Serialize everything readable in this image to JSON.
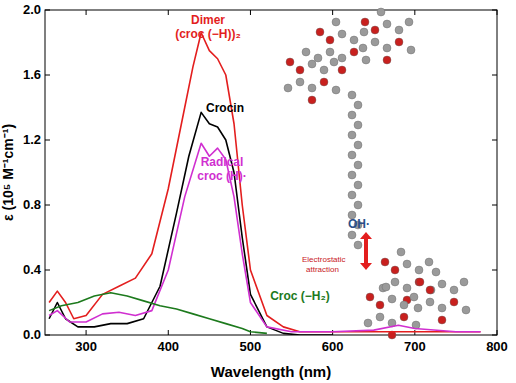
{
  "chart_data": {
    "type": "line",
    "x_label": "Wavelength (nm)",
    "y_label": "ε (10⁵ M⁻¹cm⁻¹)",
    "xlim": [
      250,
      800
    ],
    "xticks": [
      300,
      400,
      500,
      600,
      700,
      800
    ],
    "ylim": [
      0,
      2.0
    ],
    "yticks": [
      {
        "value": 0,
        "label": "0.0"
      },
      {
        "value": 0.4,
        "label": "0.4"
      },
      {
        "value": 0.8,
        "label": "0.8"
      },
      {
        "value": 1.2,
        "label": "1.2"
      },
      {
        "value": 1.6,
        "label": "1.6"
      },
      {
        "value": 2.0,
        "label": "2.0"
      }
    ],
    "grid": false,
    "annotations": [
      "OH·",
      "Electrostatic attraction"
    ],
    "series": [
      {
        "name": "Dimer (croc (−H))₂",
        "color": "#e31e1e",
        "x": [
          255,
          265,
          275,
          285,
          300,
          320,
          340,
          360,
          380,
          400,
          420,
          430,
          440,
          450,
          460,
          470,
          480,
          490,
          500,
          520,
          540,
          560,
          600,
          650,
          700,
          780
        ],
        "values": [
          0.2,
          0.27,
          0.2,
          0.1,
          0.12,
          0.25,
          0.3,
          0.35,
          0.5,
          0.9,
          1.4,
          1.65,
          1.86,
          1.75,
          1.7,
          1.6,
          1.3,
          0.8,
          0.4,
          0.12,
          0.05,
          0.02,
          0.02,
          0.02,
          0.02,
          0.02
        ]
      },
      {
        "name": "Crocin",
        "color": "#000000",
        "x": [
          255,
          265,
          275,
          290,
          310,
          330,
          350,
          370,
          390,
          410,
          425,
          440,
          450,
          460,
          470,
          480,
          490,
          500,
          520,
          540,
          560,
          600
        ],
        "values": [
          0.1,
          0.2,
          0.1,
          0.05,
          0.05,
          0.07,
          0.07,
          0.1,
          0.3,
          0.75,
          1.1,
          1.37,
          1.3,
          1.28,
          1.2,
          1.0,
          0.6,
          0.25,
          0.05,
          0.01,
          0,
          0
        ]
      },
      {
        "name": "Radical croc (H)·",
        "color": "#d02fd0",
        "x": [
          255,
          265,
          280,
          300,
          320,
          340,
          360,
          380,
          400,
          420,
          440,
          450,
          460,
          470,
          480,
          490,
          500,
          520,
          550,
          600,
          650,
          680,
          700,
          750,
          780
        ],
        "values": [
          0.12,
          0.15,
          0.08,
          0.08,
          0.13,
          0.14,
          0.12,
          0.15,
          0.4,
          0.85,
          1.18,
          1.1,
          1.15,
          1.08,
          0.85,
          0.5,
          0.2,
          0.05,
          0.02,
          0.02,
          0.03,
          0.06,
          0.04,
          0.02,
          0.02
        ]
      },
      {
        "name": "Croc (−H₂)",
        "color": "#1d7a1d",
        "x": [
          255,
          270,
          290,
          310,
          330,
          350,
          370,
          390,
          410,
          430,
          450,
          470,
          490,
          500,
          520
        ],
        "values": [
          0.15,
          0.18,
          0.2,
          0.24,
          0.26,
          0.24,
          0.21,
          0.18,
          0.16,
          0.13,
          0.1,
          0.07,
          0.04,
          0.02,
          0.01
        ]
      }
    ]
  }
}
